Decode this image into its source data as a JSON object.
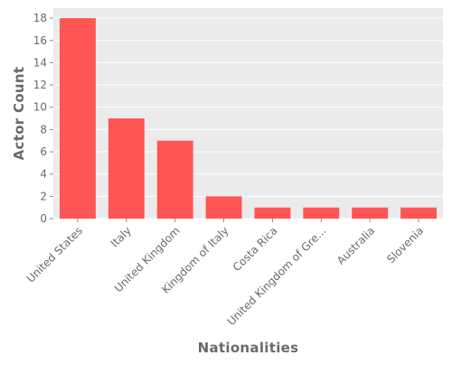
{
  "chart_data": {
    "type": "bar",
    "title": "",
    "xlabel": "Nationalities",
    "ylabel": "Actor Count",
    "categories": [
      "United States",
      "Italy",
      "United Kingdom",
      "Kingdom of Italy",
      "Costa Rica",
      "United Kingdom of Gre...",
      "Australia",
      "Slovenia"
    ],
    "values": [
      18,
      9,
      7,
      2,
      1,
      1,
      1,
      1
    ],
    "ylim": [
      0,
      18.9
    ],
    "yticks": [
      0,
      2,
      4,
      6,
      8,
      10,
      12,
      14,
      16,
      18
    ],
    "grid": true,
    "colors": {
      "bar": "#ff5555",
      "plot_background": "#ebebeb",
      "grid": "#ffffff",
      "text": "#6a6a6a"
    }
  }
}
